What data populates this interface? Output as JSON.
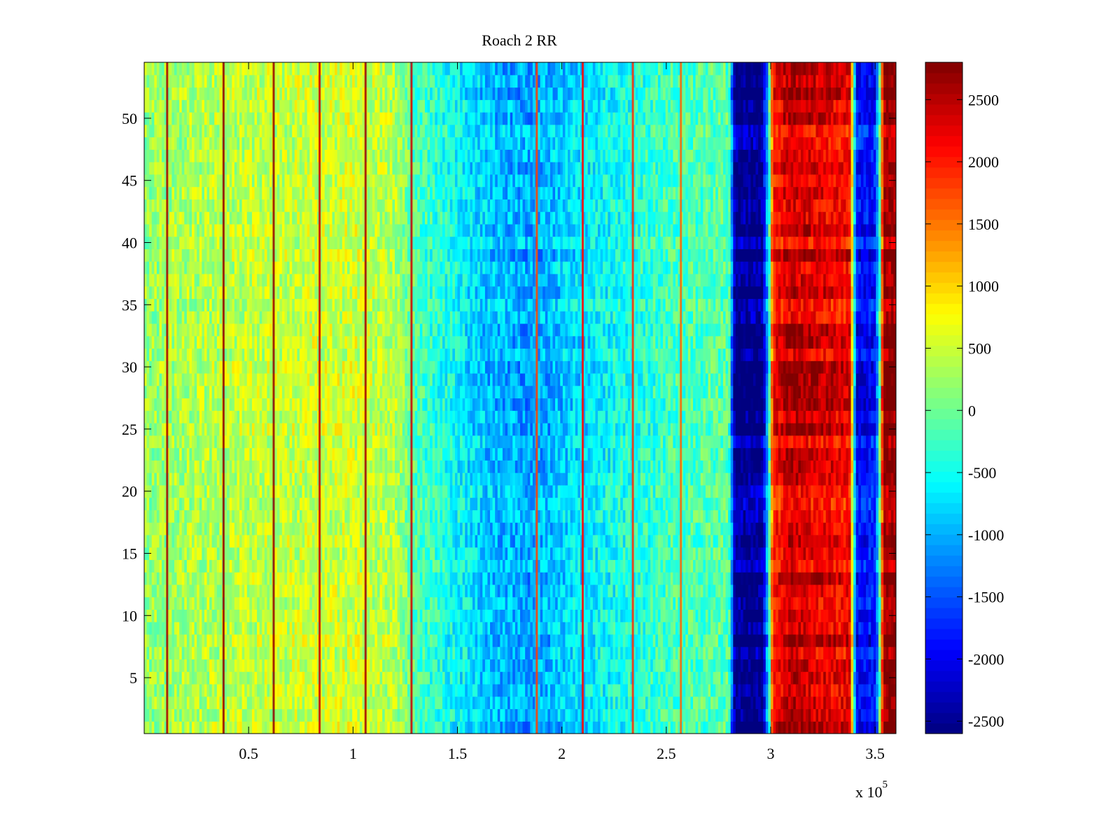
{
  "chart_data": {
    "type": "heatmap",
    "title": "Roach 2 RR",
    "xlabel": "",
    "ylabel": "",
    "x_multiplier_label": {
      "base": "x 10",
      "exponent": "5"
    },
    "xlim": [
      0,
      3.6
    ],
    "ylim": [
      0.5,
      54.5
    ],
    "rows": 54,
    "x_ticks": [
      {
        "value": 0.5,
        "label": "0.5"
      },
      {
        "value": 1,
        "label": "1"
      },
      {
        "value": 1.5,
        "label": "1.5"
      },
      {
        "value": 2,
        "label": "2"
      },
      {
        "value": 2.5,
        "label": "2.5"
      },
      {
        "value": 3,
        "label": "3"
      },
      {
        "value": 3.5,
        "label": "3.5"
      }
    ],
    "y_ticks": [
      {
        "value": 5,
        "label": "5"
      },
      {
        "value": 10,
        "label": "10"
      },
      {
        "value": 15,
        "label": "15"
      },
      {
        "value": 20,
        "label": "20"
      },
      {
        "value": 25,
        "label": "25"
      },
      {
        "value": 30,
        "label": "30"
      },
      {
        "value": 35,
        "label": "35"
      },
      {
        "value": 40,
        "label": "40"
      },
      {
        "value": 45,
        "label": "45"
      },
      {
        "value": 50,
        "label": "50"
      }
    ],
    "colorbar": {
      "colormap": "jet",
      "range": [
        -2600,
        2800
      ],
      "ticks": [
        {
          "value": 2500,
          "label": "2500"
        },
        {
          "value": 2000,
          "label": "2000"
        },
        {
          "value": 1500,
          "label": "1500"
        },
        {
          "value": 1000,
          "label": "1000"
        },
        {
          "value": 500,
          "label": "500"
        },
        {
          "value": 0,
          "label": "0"
        },
        {
          "value": -500,
          "label": "-500"
        },
        {
          "value": -1000,
          "label": "-1000"
        },
        {
          "value": -1500,
          "label": "-1500"
        },
        {
          "value": -2000,
          "label": "-2000"
        },
        {
          "value": -2500,
          "label": "-2500"
        }
      ]
    },
    "value_profile_by_x": [
      {
        "x": 0.0,
        "value": 200
      },
      {
        "x": 0.3,
        "value": 380
      },
      {
        "x": 0.7,
        "value": 480
      },
      {
        "x": 1.0,
        "value": 520
      },
      {
        "x": 1.2,
        "value": 380
      },
      {
        "x": 1.3,
        "value": -150
      },
      {
        "x": 1.5,
        "value": -550
      },
      {
        "x": 1.65,
        "value": -900
      },
      {
        "x": 1.85,
        "value": -1050
      },
      {
        "x": 2.05,
        "value": -750
      },
      {
        "x": 2.3,
        "value": -450
      },
      {
        "x": 2.55,
        "value": -200
      },
      {
        "x": 2.8,
        "value": -100
      },
      {
        "x": 2.83,
        "value": -2550
      },
      {
        "x": 2.96,
        "value": -2500
      },
      {
        "x": 2.99,
        "value": -700
      },
      {
        "x": 3.01,
        "value": 2000
      },
      {
        "x": 3.1,
        "value": 2450
      },
      {
        "x": 3.25,
        "value": 2250
      },
      {
        "x": 3.38,
        "value": 2150
      },
      {
        "x": 3.41,
        "value": -1900
      },
      {
        "x": 3.5,
        "value": -1850
      },
      {
        "x": 3.52,
        "value": -400
      },
      {
        "x": 3.54,
        "value": 2700
      },
      {
        "x": 3.6,
        "value": 2750
      }
    ],
    "vertical_streaks": [
      {
        "x": 0.11,
        "value": 2600
      },
      {
        "x": 0.38,
        "value": 2700
      },
      {
        "x": 0.62,
        "value": 2700
      },
      {
        "x": 0.84,
        "value": 2400
      },
      {
        "x": 1.06,
        "value": 2600
      },
      {
        "x": 1.28,
        "value": 2400
      },
      {
        "x": 1.88,
        "value": 1800
      },
      {
        "x": 2.1,
        "value": 2100
      },
      {
        "x": 2.34,
        "value": 1900
      },
      {
        "x": 2.57,
        "value": 1600
      }
    ]
  }
}
